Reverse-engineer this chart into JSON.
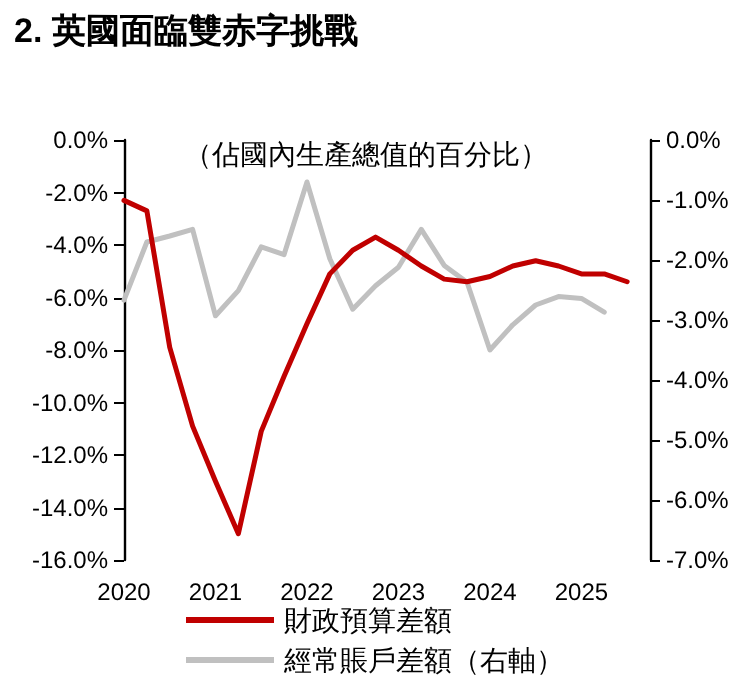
{
  "chart_data": {
    "type": "line",
    "title": "2. 英國面臨雙赤字挑戰",
    "annotations": [
      "（佔國內生產總值的百分比）"
    ],
    "series": [
      {
        "name": "財政預算差額",
        "color": "#c00000",
        "x": [
          2020,
          2020.25,
          2020.5,
          2020.75,
          2021,
          2021.25,
          2021.5,
          2021.75,
          2022,
          2022.25,
          2022.5,
          2022.75,
          2023,
          2023.25,
          2023.5,
          2023.75,
          2024,
          2024.25,
          2024.5,
          2024.75,
          2025,
          2025.25,
          2025.5
        ],
        "values": [
          -2.3,
          -2.7,
          -7.9,
          -10.9,
          -13.0,
          -15.0,
          -11.1,
          -9.0,
          -7.0,
          -5.1,
          -4.2,
          -3.7,
          -4.2,
          -4.8,
          -5.3,
          -5.4,
          -5.2,
          -4.8,
          -4.6,
          -4.8,
          -5.1,
          -5.1,
          -5.4
        ]
      },
      {
        "name": "經常賬戶差額（右軸）",
        "color": "#c0c0c0",
        "axis": "y2",
        "x": [
          2020,
          2020.25,
          2020.5,
          2020.75,
          2021,
          2021.25,
          2021.5,
          2021.75,
          2022,
          2022.25,
          2022.5,
          2022.75,
          2023,
          2023.25,
          2023.5,
          2023.75,
          2024,
          2024.25,
          2024.5,
          2024.75,
          2025,
          2025.25
        ],
        "values": [
          -2.67,
          -1.7,
          -1.6,
          -1.49,
          -2.93,
          -2.51,
          -1.78,
          -1.91,
          -0.7,
          -1.98,
          -2.82,
          -2.43,
          -2.12,
          -1.49,
          -2.09,
          -2.37,
          -3.5,
          -3.08,
          -2.75,
          -2.61,
          -2.64,
          -2.87
        ]
      }
    ],
    "xlim": [
      2020,
      2025.75
    ],
    "xticks": [
      2020,
      2021,
      2022,
      2023,
      2024,
      2025
    ],
    "ylim": [
      -16,
      0
    ],
    "yticks": [
      {
        "value": -16,
        "label": "-16.0%"
      },
      {
        "value": -14,
        "label": "-14.0%"
      },
      {
        "value": -12,
        "label": "-12.0%"
      },
      {
        "value": -10,
        "label": "-10.0%"
      },
      {
        "value": -8,
        "label": "-8.0%"
      },
      {
        "value": -6,
        "label": "-6.0%"
      },
      {
        "value": -4,
        "label": "-4.0%"
      },
      {
        "value": -2,
        "label": "-2.0%"
      },
      {
        "value": 0,
        "label": "0.0%"
      }
    ],
    "y2lim": [
      -7,
      0
    ],
    "y2ticks": [
      {
        "value": -7,
        "label": "-7.0%"
      },
      {
        "value": -6,
        "label": "-6.0%"
      },
      {
        "value": -5,
        "label": "-5.0%"
      },
      {
        "value": -4,
        "label": "-4.0%"
      },
      {
        "value": -3,
        "label": "-3.0%"
      },
      {
        "value": -2,
        "label": "-2.0%"
      },
      {
        "value": -1,
        "label": "-1.0%"
      },
      {
        "value": 0,
        "label": "0.0%"
      }
    ],
    "grid": false,
    "legend": "bottom",
    "marker": "none",
    "line_style": "solid"
  }
}
